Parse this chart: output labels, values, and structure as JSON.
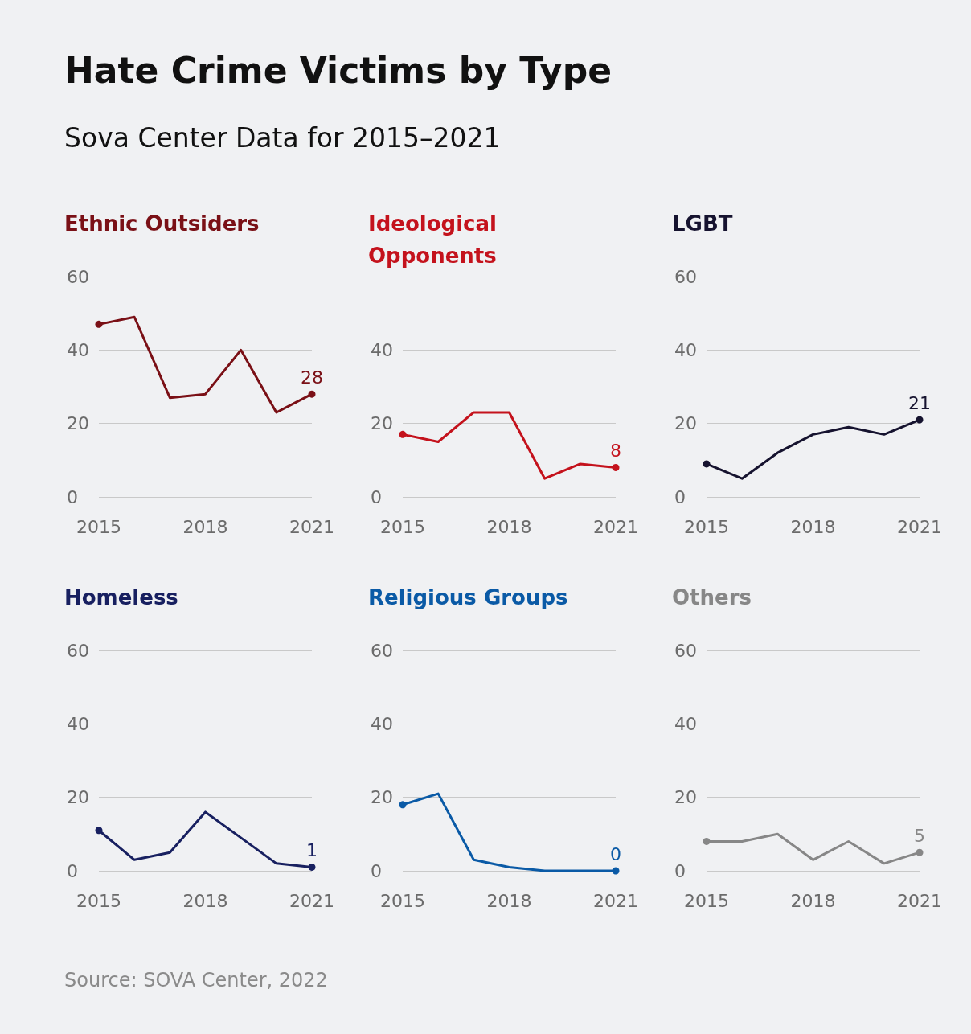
{
  "chart_data": [
    {
      "type": "other",
      "title": "Hate Crime Victims by Type",
      "subtitle": "Sova Center Data for 2015–2021",
      "annotations": [
        "Source: SOVA Center, 2022"
      ]
    },
    {
      "type": "line",
      "title": "Ethnic Outsiders",
      "x": [
        2015,
        2016,
        2017,
        2018,
        2019,
        2020,
        2021
      ],
      "xlim": [
        2015,
        2021
      ],
      "xticks": [
        2015,
        2018,
        2021
      ],
      "ylim": [
        0,
        60
      ],
      "yticks": [
        0,
        20,
        40,
        60
      ],
      "grid": "y",
      "marker": "none",
      "series": [
        {
          "color": "#7a1016",
          "values": [
            47,
            49,
            27,
            28,
            40,
            23,
            28
          ],
          "value_labels": [
            null,
            null,
            null,
            null,
            null,
            null,
            "28"
          ]
        }
      ]
    },
    {
      "type": "line",
      "title": "Ideological Opponents",
      "x": [
        2015,
        2016,
        2017,
        2018,
        2019,
        2020,
        2021
      ],
      "xlim": [
        2015,
        2021
      ],
      "xticks": [
        2015,
        2018,
        2021
      ],
      "ylim": [
        0,
        40
      ],
      "yticks": [
        0,
        20,
        40
      ],
      "grid": "y",
      "marker": "none",
      "series": [
        {
          "color": "#c4121c",
          "values": [
            17,
            15,
            23,
            23,
            5,
            9,
            8
          ],
          "value_labels": [
            null,
            null,
            null,
            null,
            null,
            null,
            "8"
          ]
        }
      ]
    },
    {
      "type": "line",
      "title": "LGBT",
      "x": [
        2015,
        2016,
        2017,
        2018,
        2019,
        2020,
        2021
      ],
      "xlim": [
        2015,
        2021
      ],
      "xticks": [
        2015,
        2018,
        2021
      ],
      "ylim": [
        0,
        60
      ],
      "yticks": [
        0,
        20,
        40,
        60
      ],
      "grid": "y",
      "marker": "none",
      "series": [
        {
          "color": "#16132f",
          "values": [
            9,
            5,
            12,
            17,
            19,
            17,
            21
          ],
          "value_labels": [
            null,
            null,
            null,
            null,
            null,
            null,
            "21"
          ]
        }
      ]
    },
    {
      "type": "line",
      "title": "Homeless",
      "x": [
        2015,
        2016,
        2017,
        2018,
        2019,
        2020,
        2021
      ],
      "xlim": [
        2015,
        2021
      ],
      "xticks": [
        2015,
        2018,
        2021
      ],
      "ylim": [
        0,
        60
      ],
      "yticks": [
        0,
        20,
        40,
        60
      ],
      "grid": "y",
      "marker": "none",
      "series": [
        {
          "color": "#182060",
          "values": [
            11,
            3,
            5,
            16,
            9,
            2,
            1
          ],
          "value_labels": [
            null,
            null,
            null,
            null,
            null,
            null,
            "1"
          ]
        }
      ]
    },
    {
      "type": "line",
      "title": "Religious Groups",
      "x": [
        2015,
        2016,
        2017,
        2018,
        2019,
        2020,
        2021
      ],
      "xlim": [
        2015,
        2021
      ],
      "xticks": [
        2015,
        2018,
        2021
      ],
      "ylim": [
        0,
        60
      ],
      "yticks": [
        0,
        20,
        40,
        60
      ],
      "grid": "y",
      "marker": "none",
      "series": [
        {
          "color": "#0a5aa6",
          "values": [
            18,
            21,
            3,
            1,
            0,
            0,
            0
          ],
          "value_labels": [
            null,
            null,
            null,
            null,
            null,
            null,
            "0"
          ]
        }
      ]
    },
    {
      "type": "line",
      "title": "Others",
      "x": [
        2015,
        2016,
        2017,
        2018,
        2019,
        2020,
        2021
      ],
      "xlim": [
        2015,
        2021
      ],
      "xticks": [
        2015,
        2018,
        2021
      ],
      "ylim": [
        0,
        60
      ],
      "yticks": [
        0,
        20,
        40,
        60
      ],
      "grid": "y",
      "marker": "none",
      "series": [
        {
          "color": "#878787",
          "values": [
            8,
            8,
            10,
            3,
            8,
            2,
            5
          ],
          "value_labels": [
            null,
            null,
            null,
            null,
            null,
            null,
            "5"
          ]
        }
      ]
    }
  ]
}
